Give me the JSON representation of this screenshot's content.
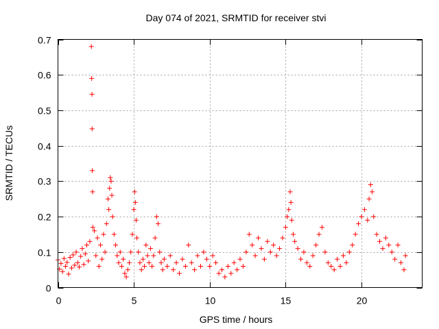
{
  "chart_data": {
    "type": "scatter",
    "title": "Day 074 of 2021, SRMTID for receiver stvi",
    "xlabel": "GPS time / hours",
    "ylabel": "SRMTID / TECUs",
    "xlim": [
      0,
      24
    ],
    "ylim": [
      0,
      0.7
    ],
    "xticks": [
      0,
      5,
      10,
      15,
      20
    ],
    "xtick_labels": [
      "0",
      "5",
      "10",
      "15",
      "20"
    ],
    "yticks": [
      0,
      0.1,
      0.2,
      0.3,
      0.4,
      0.5,
      0.6,
      0.7
    ],
    "ytick_labels": [
      "0",
      "0.1",
      "0.2",
      "0.3",
      "0.4",
      "0.5",
      "0.6",
      "0.7"
    ],
    "grid": true,
    "marker": "plus",
    "color": "#ff0000",
    "series": [
      {
        "name": "SRMTID",
        "points": [
          [
            0.0,
            0.078
          ],
          [
            0.1,
            0.052
          ],
          [
            0.2,
            0.068
          ],
          [
            0.3,
            0.045
          ],
          [
            0.4,
            0.082
          ],
          [
            0.5,
            0.06
          ],
          [
            0.6,
            0.071
          ],
          [
            0.7,
            0.038
          ],
          [
            0.8,
            0.085
          ],
          [
            0.9,
            0.055
          ],
          [
            1.0,
            0.092
          ],
          [
            1.1,
            0.063
          ],
          [
            1.2,
            0.1
          ],
          [
            1.3,
            0.07
          ],
          [
            1.4,
            0.058
          ],
          [
            1.5,
            0.088
          ],
          [
            1.6,
            0.11
          ],
          [
            1.7,
            0.065
          ],
          [
            1.8,
            0.095
          ],
          [
            1.9,
            0.12
          ],
          [
            2.0,
            0.075
          ],
          [
            2.1,
            0.13
          ],
          [
            2.2,
            0.68
          ],
          [
            2.22,
            0.59
          ],
          [
            2.24,
            0.545
          ],
          [
            2.25,
            0.448
          ],
          [
            2.26,
            0.33
          ],
          [
            2.28,
            0.27
          ],
          [
            2.3,
            0.17
          ],
          [
            2.4,
            0.16
          ],
          [
            2.5,
            0.09
          ],
          [
            2.6,
            0.14
          ],
          [
            2.7,
            0.06
          ],
          [
            2.8,
            0.12
          ],
          [
            2.9,
            0.08
          ],
          [
            3.0,
            0.15
          ],
          [
            3.1,
            0.1
          ],
          [
            3.2,
            0.18
          ],
          [
            3.3,
            0.25
          ],
          [
            3.35,
            0.22
          ],
          [
            3.4,
            0.28
          ],
          [
            3.45,
            0.31
          ],
          [
            3.5,
            0.3
          ],
          [
            3.55,
            0.26
          ],
          [
            3.6,
            0.2
          ],
          [
            3.7,
            0.15
          ],
          [
            3.8,
            0.12
          ],
          [
            3.9,
            0.09
          ],
          [
            4.0,
            0.07
          ],
          [
            4.1,
            0.1
          ],
          [
            4.2,
            0.06
          ],
          [
            4.3,
            0.08
          ],
          [
            4.4,
            0.04
          ],
          [
            4.5,
            0.03
          ],
          [
            4.6,
            0.05
          ],
          [
            4.7,
            0.07
          ],
          [
            4.8,
            0.1
          ],
          [
            4.9,
            0.15
          ],
          [
            5.0,
            0.22
          ],
          [
            5.05,
            0.27
          ],
          [
            5.1,
            0.24
          ],
          [
            5.15,
            0.19
          ],
          [
            5.2,
            0.14
          ],
          [
            5.3,
            0.1
          ],
          [
            5.4,
            0.07
          ],
          [
            5.5,
            0.05
          ],
          [
            5.6,
            0.08
          ],
          [
            5.7,
            0.06
          ],
          [
            5.8,
            0.12
          ],
          [
            5.9,
            0.09
          ],
          [
            6.0,
            0.07
          ],
          [
            6.1,
            0.11
          ],
          [
            6.2,
            0.06
          ],
          [
            6.3,
            0.09
          ],
          [
            6.4,
            0.14
          ],
          [
            6.5,
            0.2
          ],
          [
            6.6,
            0.18
          ],
          [
            6.7,
            0.1
          ],
          [
            6.8,
            0.07
          ],
          [
            6.9,
            0.05
          ],
          [
            7.0,
            0.08
          ],
          [
            7.2,
            0.06
          ],
          [
            7.4,
            0.09
          ],
          [
            7.6,
            0.05
          ],
          [
            7.8,
            0.07
          ],
          [
            8.0,
            0.04
          ],
          [
            8.2,
            0.08
          ],
          [
            8.4,
            0.06
          ],
          [
            8.6,
            0.12
          ],
          [
            8.8,
            0.07
          ],
          [
            9.0,
            0.05
          ],
          [
            9.2,
            0.09
          ],
          [
            9.4,
            0.06
          ],
          [
            9.6,
            0.1
          ],
          [
            9.8,
            0.08
          ],
          [
            10.0,
            0.06
          ],
          [
            10.2,
            0.09
          ],
          [
            10.4,
            0.07
          ],
          [
            10.6,
            0.04
          ],
          [
            10.8,
            0.05
          ],
          [
            11.0,
            0.03
          ],
          [
            11.2,
            0.06
          ],
          [
            11.4,
            0.04
          ],
          [
            11.6,
            0.07
          ],
          [
            11.8,
            0.05
          ],
          [
            12.0,
            0.08
          ],
          [
            12.2,
            0.06
          ],
          [
            12.4,
            0.1
          ],
          [
            12.6,
            0.15
          ],
          [
            12.8,
            0.12
          ],
          [
            13.0,
            0.09
          ],
          [
            13.2,
            0.14
          ],
          [
            13.4,
            0.11
          ],
          [
            13.6,
            0.08
          ],
          [
            13.8,
            0.13
          ],
          [
            14.0,
            0.1
          ],
          [
            14.2,
            0.12
          ],
          [
            14.4,
            0.09
          ],
          [
            14.6,
            0.11
          ],
          [
            14.8,
            0.14
          ],
          [
            15.0,
            0.17
          ],
          [
            15.1,
            0.2
          ],
          [
            15.2,
            0.22
          ],
          [
            15.3,
            0.27
          ],
          [
            15.35,
            0.24
          ],
          [
            15.4,
            0.19
          ],
          [
            15.5,
            0.15
          ],
          [
            15.6,
            0.13
          ],
          [
            15.8,
            0.11
          ],
          [
            16.0,
            0.08
          ],
          [
            16.2,
            0.1
          ],
          [
            16.4,
            0.07
          ],
          [
            16.6,
            0.06
          ],
          [
            16.8,
            0.09
          ],
          [
            17.0,
            0.12
          ],
          [
            17.2,
            0.15
          ],
          [
            17.4,
            0.17
          ],
          [
            17.6,
            0.1
          ],
          [
            17.8,
            0.07
          ],
          [
            18.0,
            0.06
          ],
          [
            18.2,
            0.05
          ],
          [
            18.4,
            0.08
          ],
          [
            18.6,
            0.06
          ],
          [
            18.8,
            0.09
          ],
          [
            19.0,
            0.07
          ],
          [
            19.2,
            0.1
          ],
          [
            19.4,
            0.12
          ],
          [
            19.6,
            0.15
          ],
          [
            19.8,
            0.18
          ],
          [
            20.0,
            0.2
          ],
          [
            20.2,
            0.22
          ],
          [
            20.4,
            0.19
          ],
          [
            20.5,
            0.25
          ],
          [
            20.6,
            0.29
          ],
          [
            20.7,
            0.27
          ],
          [
            20.8,
            0.2
          ],
          [
            21.0,
            0.15
          ],
          [
            21.2,
            0.13
          ],
          [
            21.4,
            0.11
          ],
          [
            21.6,
            0.14
          ],
          [
            21.8,
            0.12
          ],
          [
            22.0,
            0.1
          ],
          [
            22.2,
            0.08
          ],
          [
            22.4,
            0.12
          ],
          [
            22.6,
            0.07
          ],
          [
            22.8,
            0.05
          ],
          [
            22.9,
            0.09
          ]
        ]
      }
    ]
  }
}
